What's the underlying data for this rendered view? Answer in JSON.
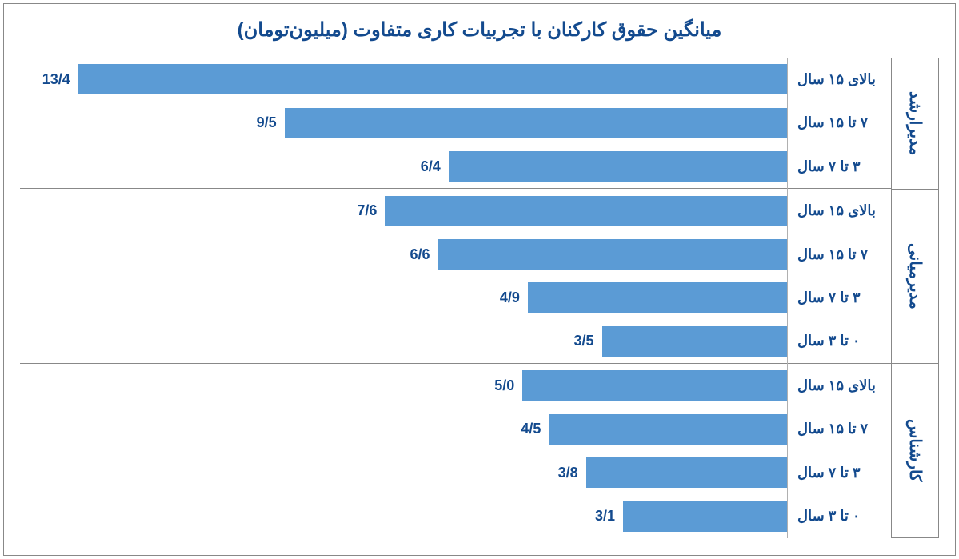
{
  "chart": {
    "type": "bar-horizontal-grouped",
    "title": "میانگین حقوق کارکنان با تجربیات کاری متفاوت (میلیون‌تومان)",
    "title_color": "#134a8e",
    "title_fontsize": 24,
    "bar_color": "#5b9bd5",
    "value_color": "#134a8e",
    "group_label_color": "#134a8e",
    "row_label_color": "#134a8e",
    "label_fontsize": 18,
    "value_fontsize": 18,
    "group_label_fontsize": 20,
    "x_max": 14.5,
    "background_color": "#ffffff",
    "border_color": "#888888",
    "axis_color": "#b0b0b0",
    "groups": [
      {
        "name": "مدیرارشد",
        "rows": [
          {
            "label": "بالای ۱۵ سال",
            "value": 13.4,
            "display": "13/4"
          },
          {
            "label": "۷ تا ۱۵ سال",
            "value": 9.5,
            "display": "9/5"
          },
          {
            "label": "۳ تا ۷ سال",
            "value": 6.4,
            "display": "6/4"
          }
        ]
      },
      {
        "name": "مدیرمیانی",
        "rows": [
          {
            "label": "بالای ۱۵ سال",
            "value": 7.6,
            "display": "7/6"
          },
          {
            "label": "۷ تا ۱۵ سال",
            "value": 6.6,
            "display": "6/6"
          },
          {
            "label": "۳ تا ۷ سال",
            "value": 4.9,
            "display": "4/9"
          },
          {
            "label": "۰ تا ۳ سال",
            "value": 3.5,
            "display": "3/5"
          }
        ]
      },
      {
        "name": "کارشناس",
        "rows": [
          {
            "label": "بالای ۱۵ سال",
            "value": 5.0,
            "display": "5/0"
          },
          {
            "label": "۷ تا ۱۵ سال",
            "value": 4.5,
            "display": "4/5"
          },
          {
            "label": "۳ تا ۷ سال",
            "value": 3.8,
            "display": "3/8"
          },
          {
            "label": "۰ تا ۳ سال",
            "value": 3.1,
            "display": "3/1"
          }
        ]
      }
    ]
  }
}
